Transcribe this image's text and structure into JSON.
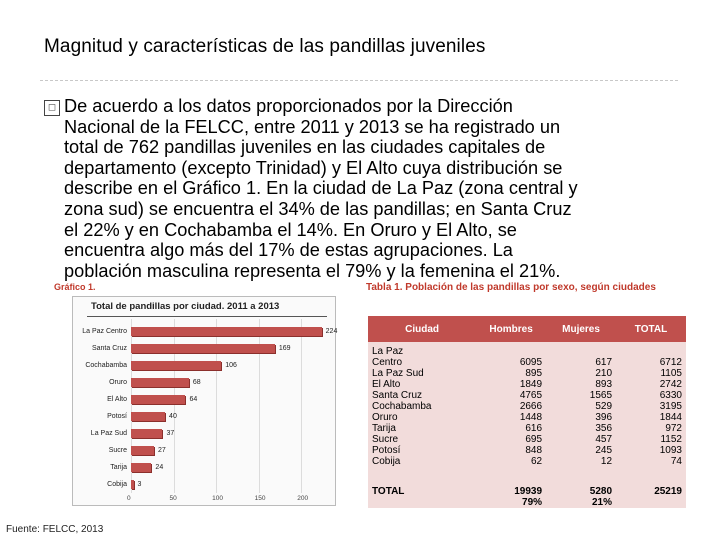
{
  "slide": {
    "title": "Magnitud y características de las pandillas juveniles",
    "bullet_icon": "checkbox-bullet-icon",
    "body_lines": [
      "De acuerdo a los datos proporcionados por la Dirección",
      "Nacional de la FELCC, entre 2011 y 2013 se ha registrado un",
      "total de 762 pandillas juveniles en las ciudades capitales de",
      "departamento (excepto Trinidad) y El Alto cuya distribución se",
      "describe en el Gráfico 1. En la ciudad de La Paz (zona central y",
      "zona sud) se encuentra el 34% de las pandillas; en Santa Cruz",
      "el 22% y en Cochabamba el 14%. En Oruro y El Alto, se",
      "encuentra algo más del 17% de estas agrupaciones. La",
      "población masculina representa el 79% y la femenina el 21%."
    ]
  },
  "chart": {
    "caption": "Gráfico 1.",
    "title": "Total de pandillas por ciudad. 2011 a 2013",
    "bar_color": "#c0504d"
  },
  "chart_data": {
    "type": "bar",
    "orientation": "horizontal",
    "title": "Total de pandillas por ciudad. 2011 a 2013",
    "categories": [
      "La Paz Centro",
      "Santa Cruz",
      "Cochabamba",
      "Oruro",
      "El Alto",
      "Potosí",
      "La Paz Sud",
      "Sucre",
      "Tarija",
      "Cobija"
    ],
    "values": [
      224,
      169,
      106,
      68,
      64,
      40,
      37,
      27,
      24,
      3
    ],
    "xlim": [
      0,
      250
    ],
    "xticks": [
      "0",
      "50",
      "100",
      "150",
      "200"
    ]
  },
  "table": {
    "caption": "Tabla 1. Población de las pandillas por sexo, según ciudades",
    "headers": [
      "Ciudad",
      "Hombres",
      "Mujeres",
      "TOTAL"
    ],
    "ciudad": "La Paz\nCentro\nLa Paz Sud\nEl Alto\nSanta Cruz\nCochabamba\nOruro\nTarija\nSucre\nPotosí\nCobija",
    "hombres": "\n6095\n895\n1849\n4765\n2666\n1448\n616\n695\n848\n62",
    "mujeres": "\n617\n210\n893\n1565\n529\n396\n356\n457\n245\n12",
    "total": "\n6712\n1105\n2742\n6330\n3195\n1844\n972\n1152\n1093\n74",
    "total_row": {
      "label": "TOTAL",
      "hombres": "19939",
      "mujeres": "5280",
      "total": "25219"
    },
    "pct_row": {
      "hombres": "79%",
      "mujeres": "21%"
    },
    "source": "Fuente: FELCC, 2013"
  }
}
